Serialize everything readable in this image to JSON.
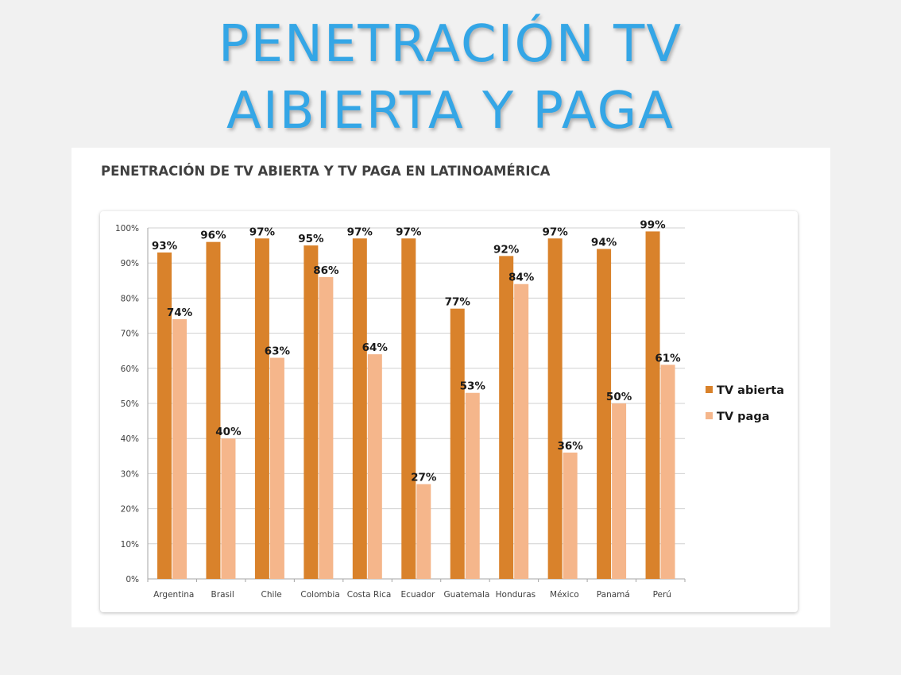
{
  "slide": {
    "title_line1": "PENETRACIÓN TV",
    "title_line2": "AIBIERTA Y PAGA"
  },
  "colors": {
    "title": "#34a6e6",
    "tv_abierta": "#d9822b",
    "tv_paga": "#f5b68b"
  },
  "chart_data": {
    "type": "bar",
    "title": "PENETRACIÓN DE TV ABIERTA Y TV PAGA EN LATINOAMÉRICA",
    "categories": [
      "Argentina",
      "Brasil",
      "Chile",
      "Colombia",
      "Costa Rica",
      "Ecuador",
      "Guatemala",
      "Honduras",
      "México",
      "Panamá",
      "Perú"
    ],
    "series": [
      {
        "name": "TV abierta",
        "values": [
          93,
          96,
          97,
          95,
          97,
          97,
          77,
          92,
          97,
          94,
          99
        ],
        "labels": [
          "93%",
          "96%",
          "97%",
          "95%",
          "97%",
          "97%",
          "77%",
          "92%",
          "97%",
          "94%",
          "99%"
        ]
      },
      {
        "name": "TV paga",
        "values": [
          74,
          40,
          63,
          86,
          64,
          27,
          53,
          84,
          36,
          50,
          61
        ],
        "labels": [
          "74%",
          "40%",
          "63%",
          "86%",
          "64%",
          "27%",
          "53%",
          "84%",
          "36%",
          "50%",
          "61%"
        ]
      }
    ],
    "y_ticks": [
      "0%",
      "10%",
      "20%",
      "30%",
      "40%",
      "50%",
      "60%",
      "70%",
      "80%",
      "90%",
      "100%"
    ],
    "ylim": [
      0,
      100
    ],
    "grid": true,
    "legend_position": "right"
  }
}
